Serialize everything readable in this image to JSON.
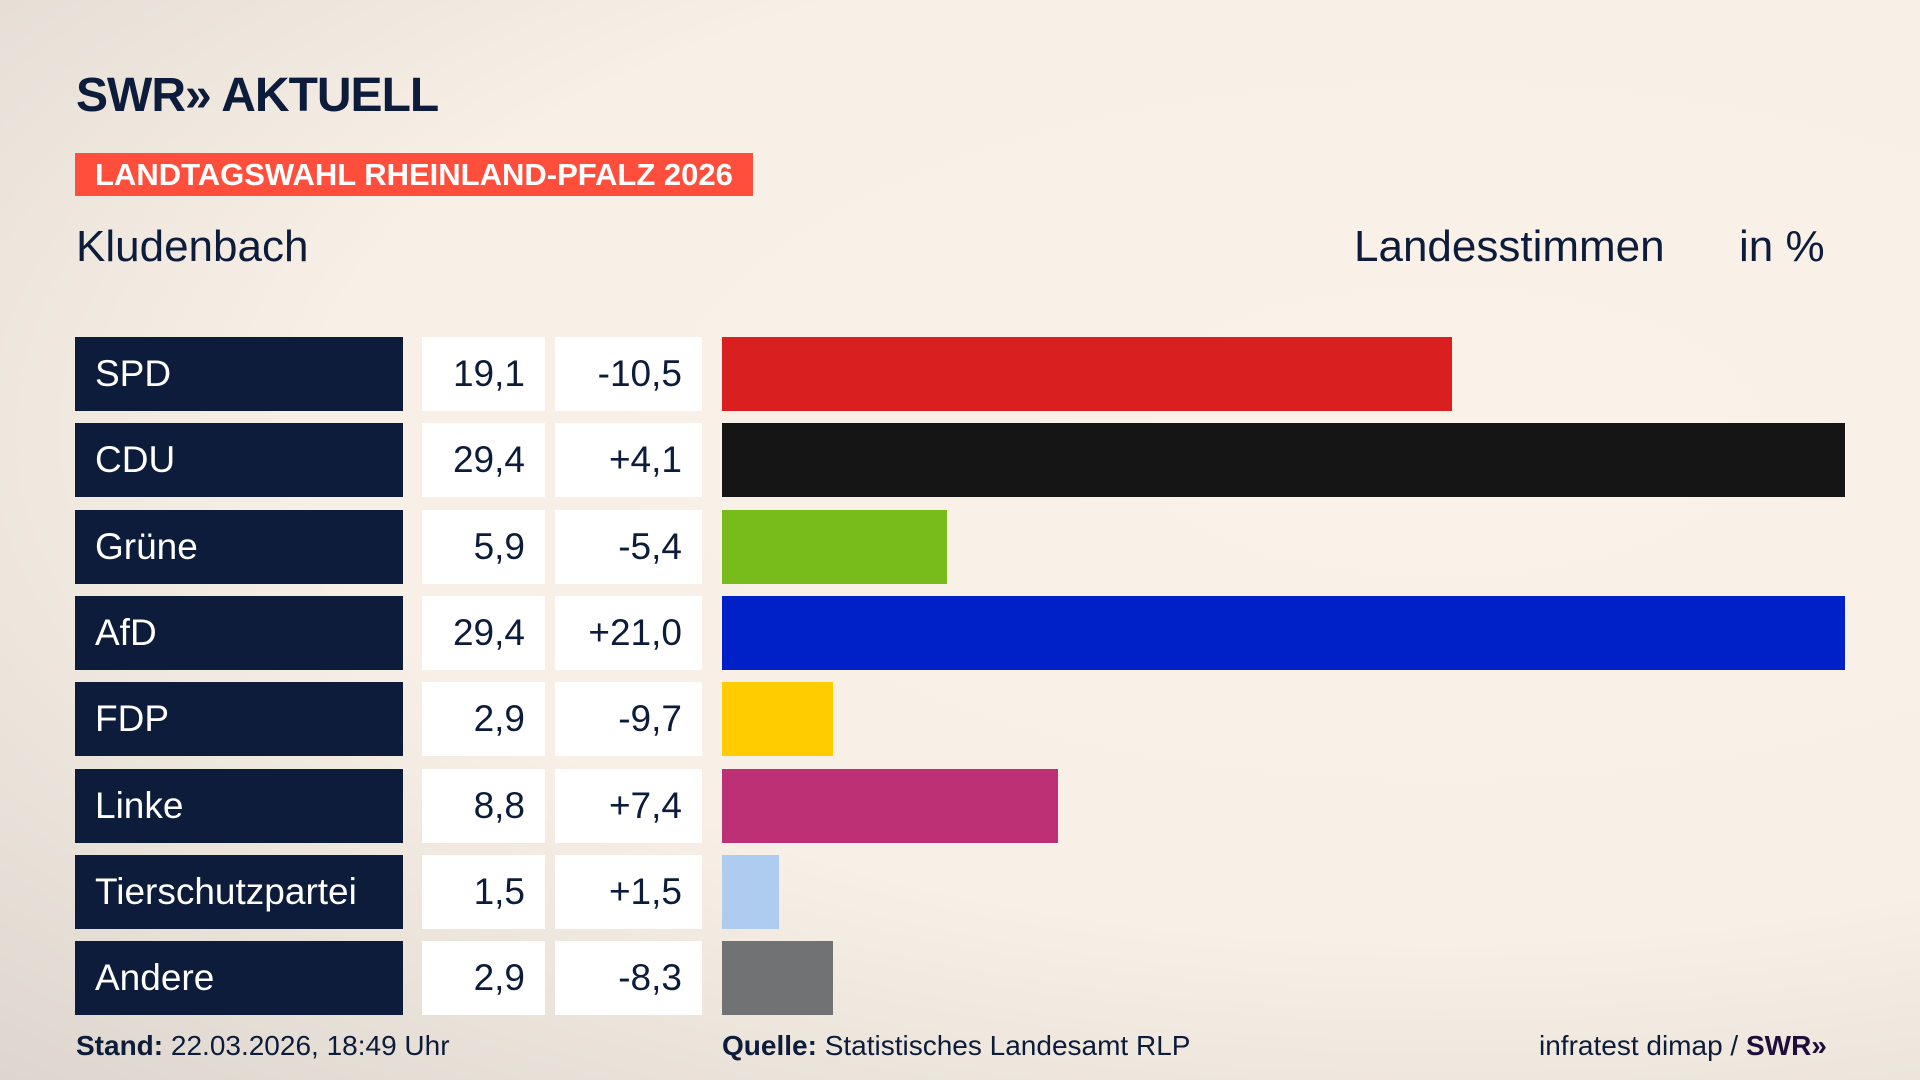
{
  "header": {
    "logo": "SWR» AKTUELL",
    "banner": "LANDTAGSWAHL RHEINLAND-PFALZ 2026",
    "region": "Kludenbach",
    "vote_type": "Landesstimmen",
    "unit": "in %"
  },
  "chart_data": {
    "type": "bar",
    "orientation": "horizontal",
    "categories": [
      "SPD",
      "CDU",
      "Grüne",
      "AfD",
      "FDP",
      "Linke",
      "Tierschutzpartei",
      "Andere"
    ],
    "values": [
      19.1,
      29.4,
      5.9,
      29.4,
      2.9,
      8.8,
      1.5,
      2.9
    ],
    "values_label": [
      "19,1",
      "29,4",
      "5,9",
      "29,4",
      "2,9",
      "8,8",
      "1,5",
      "2,9"
    ],
    "change": [
      "-10,5",
      "+4,1",
      "-5,4",
      "+21,0",
      "-9,7",
      "+7,4",
      "+1,5",
      "-8,3"
    ],
    "colors": [
      "#d91f20",
      "#151515",
      "#78bc1b",
      "#0021c8",
      "#ffcc00",
      "#be3075",
      "#aecbf0",
      "#717273"
    ],
    "xlim": [
      0,
      29.4
    ],
    "grid": false
  },
  "footer": {
    "stand_label": "Stand:",
    "stand_value": "22.03.2026, 18:49 Uhr",
    "source_label": "Quelle:",
    "source_value": "Statistisches Landesamt RLP",
    "credit": "infratest dimap / ",
    "credit_logo": "SWR»"
  }
}
